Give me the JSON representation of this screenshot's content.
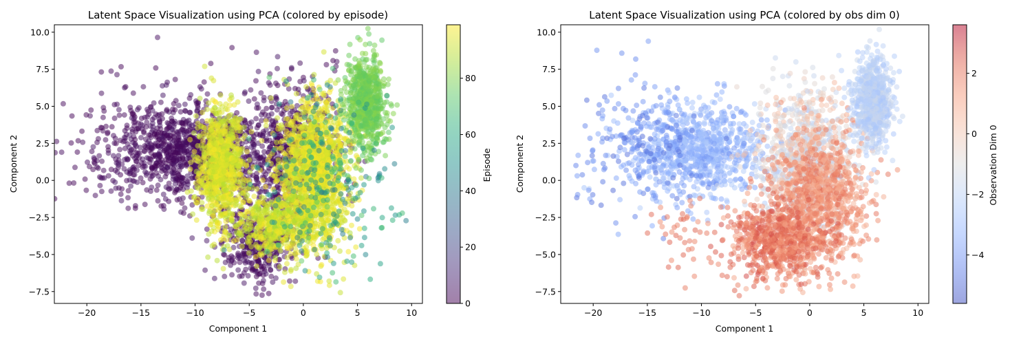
{
  "chart_data": [
    {
      "type": "scatter",
      "title": "Latent Space Visualization using PCA (colored by episode)",
      "xlabel": "Component 1",
      "ylabel": "Component 2",
      "xlim": [
        -23,
        11
      ],
      "ylim": [
        -8.3,
        10.5
      ],
      "xticks": [
        -20,
        -15,
        -10,
        -5,
        0,
        5,
        10
      ],
      "yticks": [
        -7.5,
        -5.0,
        -2.5,
        0.0,
        2.5,
        5.0,
        7.5,
        10.0
      ],
      "grid": false,
      "colormap": "viridis",
      "colorbar": {
        "label": "Episode",
        "range": [
          0,
          99
        ],
        "ticks": [
          0,
          20,
          40,
          60,
          80
        ]
      },
      "clusters": [
        {
          "name": "left-wing",
          "cx": -10.5,
          "cy": 2.0,
          "sx": 3.2,
          "sy": 1.6,
          "n": 900,
          "c": [
            0,
            6
          ]
        },
        {
          "name": "far-left-sparse",
          "cx": -16,
          "cy": 2.6,
          "sx": 3.0,
          "sy": 2.2,
          "n": 160,
          "c": [
            0,
            4
          ]
        },
        {
          "name": "center-purple",
          "cx": -1.5,
          "cy": 1.5,
          "sx": 2.5,
          "sy": 2.6,
          "n": 700,
          "c": [
            0,
            6
          ]
        },
        {
          "name": "bottom-purple",
          "cx": -4.5,
          "cy": -4.5,
          "sx": 1.8,
          "sy": 1.3,
          "n": 300,
          "c": [
            0,
            6
          ]
        },
        {
          "name": "left-yellow",
          "cx": -7.6,
          "cy": 0.9,
          "sx": 1.0,
          "sy": 2.0,
          "n": 900,
          "c": [
            88,
            99
          ]
        },
        {
          "name": "right-yellow",
          "cx": 1.0,
          "cy": 0.5,
          "sx": 1.6,
          "sy": 2.5,
          "n": 1400,
          "c": [
            90,
            99
          ]
        },
        {
          "name": "bottom-yellow",
          "cx": -2.5,
          "cy": -3.0,
          "sx": 1.8,
          "sy": 1.0,
          "n": 500,
          "c": [
            85,
            99
          ]
        },
        {
          "name": "green-cluster",
          "cx": 5.8,
          "cy": 5.3,
          "sx": 0.9,
          "sy": 1.5,
          "n": 700,
          "c": [
            74,
            82
          ]
        },
        {
          "name": "teal-halo",
          "cx": 2.5,
          "cy": 0.0,
          "sx": 3.0,
          "sy": 3.0,
          "n": 250,
          "c": [
            40,
            75
          ]
        }
      ]
    },
    {
      "type": "scatter",
      "title": "Latent Space Visualization using PCA (colored by obs dim 0)",
      "xlabel": "Component 1",
      "ylabel": "Component 2",
      "xlim": [
        -23,
        11
      ],
      "ylim": [
        -8.3,
        10.5
      ],
      "xticks": [
        -20,
        -15,
        -10,
        -5,
        0,
        5,
        10
      ],
      "yticks": [
        -7.5,
        -5.0,
        -2.5,
        0.0,
        2.5,
        5.0,
        7.5,
        10.0
      ],
      "grid": false,
      "colormap": "coolwarm",
      "colorbar": {
        "label": "Observation Dim 0",
        "range": [
          -5.6,
          3.6
        ],
        "ticks": [
          -4,
          -2,
          0,
          2
        ]
      },
      "clusters": [
        {
          "name": "left-wing",
          "cx": -10.5,
          "cy": 2.0,
          "sx": 3.2,
          "sy": 1.6,
          "n": 900,
          "c": [
            -4.0,
            -2.3
          ]
        },
        {
          "name": "far-left-sparse",
          "cx": -16,
          "cy": 2.6,
          "sx": 3.0,
          "sy": 2.2,
          "n": 160,
          "c": [
            -5.0,
            -3.5
          ]
        },
        {
          "name": "center",
          "cx": -0.5,
          "cy": 1.5,
          "sx": 2.2,
          "sy": 2.4,
          "n": 900,
          "c": [
            -2.0,
            0.5
          ]
        },
        {
          "name": "right-lobe",
          "cx": 1.0,
          "cy": -1.0,
          "sx": 2.2,
          "sy": 2.2,
          "n": 900,
          "c": [
            0.5,
            2.2
          ]
        },
        {
          "name": "bottom",
          "cx": -3.0,
          "cy": -4.0,
          "sx": 2.2,
          "sy": 1.3,
          "n": 700,
          "c": [
            1.0,
            2.8
          ]
        },
        {
          "name": "top-right",
          "cx": 5.8,
          "cy": 5.3,
          "sx": 0.9,
          "sy": 1.5,
          "n": 700,
          "c": [
            -2.6,
            -1.5
          ]
        },
        {
          "name": "stray-red",
          "cx": -12,
          "cy": -3.5,
          "sx": 1.5,
          "sy": 1.3,
          "n": 40,
          "c": [
            1.5,
            2.5
          ]
        }
      ]
    }
  ]
}
